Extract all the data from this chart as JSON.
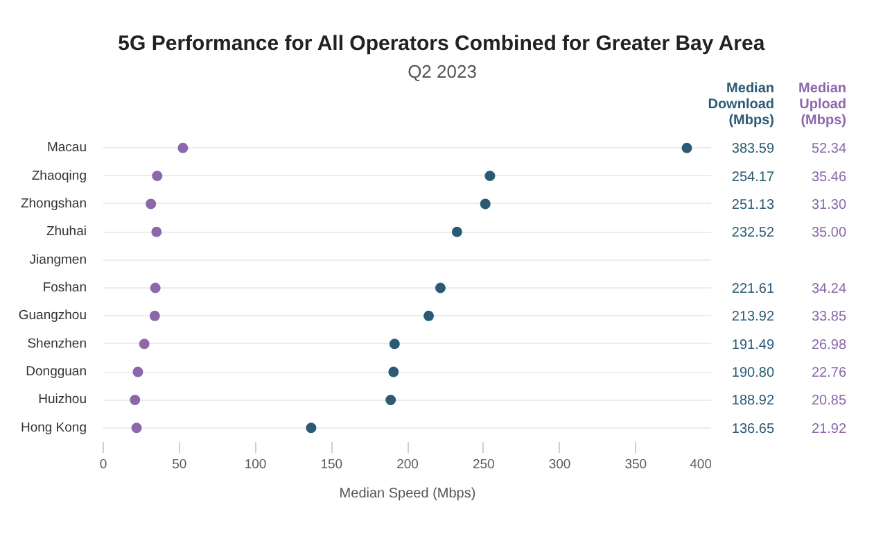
{
  "chart_data": {
    "type": "scatter",
    "title": "5G Performance for All Operators Combined for Greater Bay Area",
    "subtitle": "Q2 2023",
    "xlabel": "Median Speed (Mbps)",
    "orientation": "horizontal",
    "categories": [
      "Macau",
      "Zhaoqing",
      "Zhongshan",
      "Zhuhai",
      "Jiangmen",
      "Foshan",
      "Guangzhou",
      "Shenzhen",
      "Dongguan",
      "Huizhou",
      "Hong Kong"
    ],
    "series": [
      {
        "name": "Median Download (Mbps)",
        "color": "#2b5a75",
        "values": [
          383.59,
          254.17,
          251.13,
          232.52,
          null,
          221.61,
          213.92,
          191.49,
          190.8,
          188.92,
          136.65
        ],
        "value_labels": [
          "383.59",
          "254.17",
          "251.13",
          "232.52",
          null,
          "221.61",
          "213.92",
          "191.49",
          "190.80",
          "188.92",
          "136.65"
        ]
      },
      {
        "name": "Median Upload (Mbps)",
        "color": "#8c67aa",
        "values": [
          52.34,
          35.46,
          31.3,
          35.0,
          null,
          34.24,
          33.85,
          26.98,
          22.76,
          20.85,
          21.92
        ],
        "value_labels": [
          "52.34",
          "35.46",
          "31.30",
          "35.00",
          null,
          "34.24",
          "33.85",
          "26.98",
          "22.76",
          "20.85",
          "21.92"
        ]
      }
    ],
    "xlim": [
      0,
      400
    ],
    "xticks": [
      0,
      50,
      100,
      150,
      200,
      250,
      300,
      350,
      400
    ],
    "grid": "y",
    "marker": "circle"
  }
}
